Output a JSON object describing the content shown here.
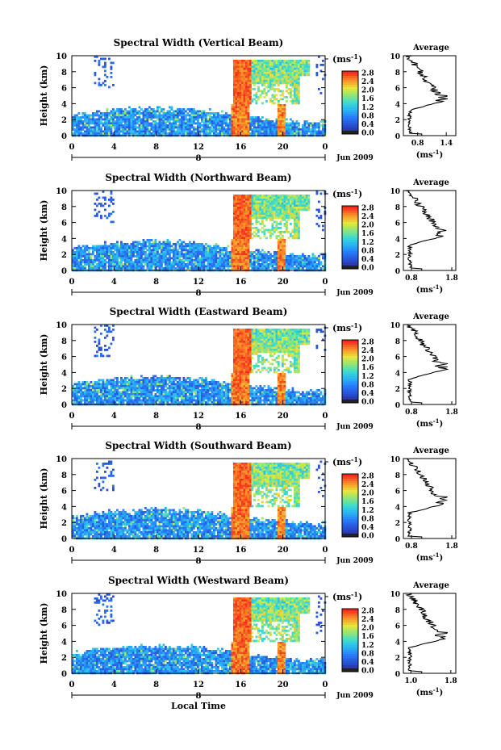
{
  "chart_data": [
    {
      "type": "heatmap",
      "title": "Spectral Width (Vertical Beam)",
      "ylabel": "Height (km)",
      "ylim": [
        0,
        10
      ],
      "yticks": [
        "0",
        "2",
        "4",
        "6",
        "8",
        "10"
      ],
      "xticks": [
        "0",
        "4",
        "8",
        "12",
        "16",
        "20",
        "0"
      ],
      "date_marker": "8",
      "date_label": "Jun 2009",
      "colorbar": {
        "unit": "(ms",
        "unit_exp": "-1",
        "unit_close": ")",
        "ticks": [
          "0.0",
          "0.4",
          "0.8",
          "1.2",
          "1.6",
          "2.0",
          "2.4",
          "2.8"
        ]
      },
      "average": {
        "title": "Average",
        "xticks": [
          "0.8",
          "1.4"
        ],
        "xlim": [
          0.5,
          1.6
        ],
        "xlabel": "(ms",
        "xlabel_exp": "-1",
        "xlabel_close": ")",
        "yticks": [
          "0",
          "2",
          "4",
          "6",
          "8",
          "10"
        ]
      }
    },
    {
      "type": "heatmap",
      "title": "Spectral Width (Northward Beam)",
      "ylabel": "Height (km)",
      "ylim": [
        0,
        10
      ],
      "yticks": [
        "0",
        "2",
        "4",
        "6",
        "8",
        "10"
      ],
      "xticks": [
        "0",
        "4",
        "8",
        "12",
        "16",
        "20",
        "0"
      ],
      "date_marker": "8",
      "date_label": "Jun 2009",
      "colorbar": {
        "unit": "(ms",
        "unit_exp": "-1",
        "unit_close": ")",
        "ticks": [
          "0.0",
          "0.4",
          "0.8",
          "1.2",
          "1.6",
          "2.0",
          "2.4",
          "2.8"
        ]
      },
      "average": {
        "title": "Average",
        "xticks": [
          "0.8",
          "1.8"
        ],
        "xlim": [
          0.6,
          1.9
        ],
        "xlabel": "(ms",
        "xlabel_exp": "-1",
        "xlabel_close": ")",
        "yticks": [
          "0",
          "2",
          "4",
          "6",
          "8",
          "10"
        ]
      }
    },
    {
      "type": "heatmap",
      "title": "Spectral Width (Eastward Beam)",
      "ylabel": "Height (km)",
      "ylim": [
        0,
        10
      ],
      "yticks": [
        "0",
        "2",
        "4",
        "6",
        "8",
        "10"
      ],
      "xticks": [
        "0",
        "4",
        "8",
        "12",
        "16",
        "20",
        "0"
      ],
      "date_marker": "8",
      "date_label": "Jun 2009",
      "colorbar": {
        "unit": "(ms",
        "unit_exp": "-1",
        "unit_close": ")",
        "ticks": [
          "0.0",
          "0.4",
          "0.8",
          "1.2",
          "1.6",
          "2.0",
          "2.4",
          "2.8"
        ]
      },
      "average": {
        "title": "Average",
        "xticks": [
          "0.8",
          "1.8"
        ],
        "xlim": [
          0.6,
          1.9
        ],
        "xlabel": "(ms",
        "xlabel_exp": "-1",
        "xlabel_close": ")",
        "yticks": [
          "0",
          "2",
          "4",
          "6",
          "8",
          "10"
        ]
      }
    },
    {
      "type": "heatmap",
      "title": "Spectral Width (Southward Beam)",
      "ylabel": "Height (km)",
      "ylim": [
        0,
        10
      ],
      "yticks": [
        "0",
        "2",
        "4",
        "6",
        "8",
        "10"
      ],
      "xticks": [
        "0",
        "4",
        "8",
        "12",
        "16",
        "20",
        "0"
      ],
      "date_marker": "8",
      "date_label": "Jun 2009",
      "colorbar": {
        "unit": "(ms",
        "unit_exp": "-1",
        "unit_close": ")",
        "ticks": [
          "0.0",
          "0.4",
          "0.8",
          "1.2",
          "1.6",
          "2.0",
          "2.4",
          "2.8"
        ]
      },
      "average": {
        "title": "Average",
        "xticks": [
          "0.8",
          "1.8"
        ],
        "xlim": [
          0.6,
          1.9
        ],
        "xlabel": "(ms",
        "xlabel_exp": "-1",
        "xlabel_close": ")",
        "yticks": [
          "0",
          "2",
          "4",
          "6",
          "8",
          "10"
        ]
      }
    },
    {
      "type": "heatmap",
      "title": "Spectral Width (Westward Beam)",
      "ylabel": "Height (km)",
      "ylim": [
        0,
        10
      ],
      "yticks": [
        "0",
        "2",
        "4",
        "6",
        "8",
        "10"
      ],
      "xticks": [
        "0",
        "4",
        "8",
        "12",
        "16",
        "20",
        "0"
      ],
      "date_marker": "8",
      "date_label": "Jun 2009",
      "xlabel": "Local Time",
      "colorbar": {
        "unit": "(ms",
        "unit_exp": "-1",
        "unit_close": ")",
        "ticks": [
          "0.0",
          "0.4",
          "0.8",
          "1.2",
          "1.6",
          "2.0",
          "2.4",
          "2.8"
        ]
      },
      "average": {
        "title": "Average",
        "xticks": [
          "1.0",
          "1.8"
        ],
        "xlim": [
          0.85,
          1.9
        ],
        "xlabel": "(ms",
        "xlabel_exp": "-1",
        "xlabel_close": ")",
        "yticks": [
          "0",
          "2",
          "4",
          "6",
          "8",
          "10"
        ]
      }
    }
  ]
}
